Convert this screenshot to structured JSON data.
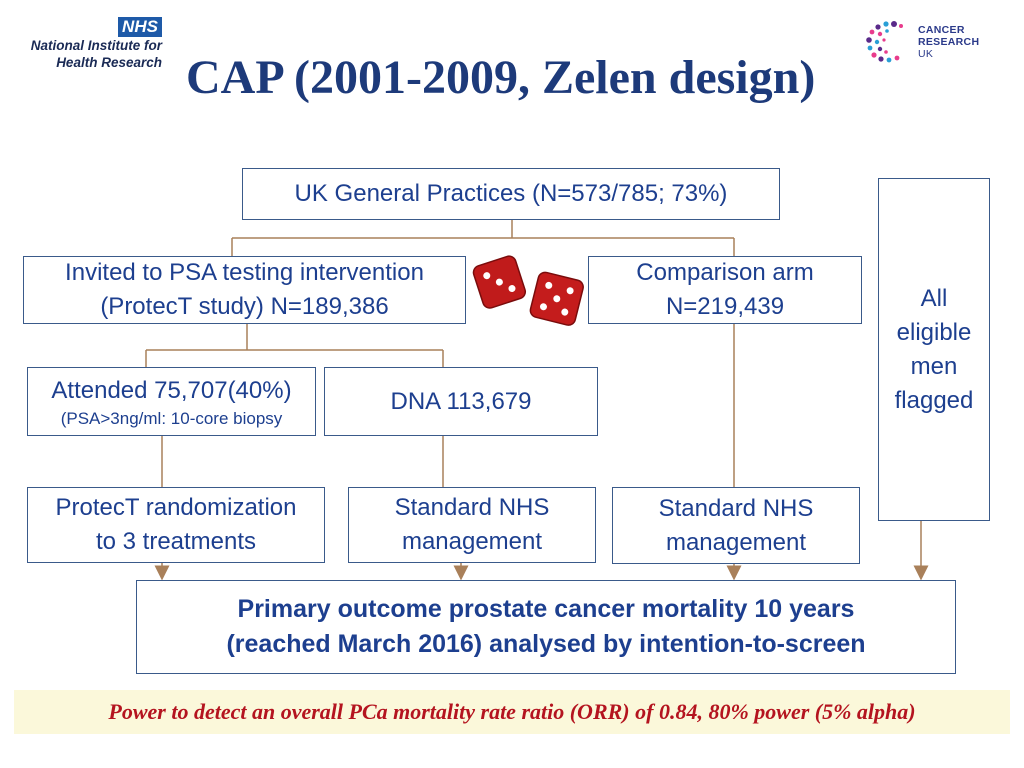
{
  "header": {
    "title": "CAP (2001-2009, Zelen design)",
    "nihr": {
      "badge": "NHS",
      "line1": "National Institute for",
      "line2": "Health Research"
    },
    "cruk": {
      "line1": "CANCER",
      "line2": "RESEARCH",
      "line3": "UK"
    }
  },
  "flow": {
    "practices": "UK General Practices (N=573/785; 73%)",
    "invited": {
      "line1": "Invited to PSA testing intervention",
      "line2": "(ProtecT study) N=189,386"
    },
    "comparison": {
      "line1": "Comparison arm",
      "line2": "N=219,439"
    },
    "flagged": {
      "line1": "All",
      "line2": "eligible",
      "line3": "men",
      "line4": "flagged"
    },
    "attended": {
      "line1": "Attended 75,707(40%)",
      "line2": "(PSA>3ng/ml: 10-core biopsy"
    },
    "dna": "DNA 113,679",
    "protect": {
      "line1": "ProtecT randomization",
      "line2": "to 3 treatments"
    },
    "standard_mid": {
      "line1": "Standard NHS",
      "line2": "management"
    },
    "standard_right": {
      "line1": "Standard NHS",
      "line2": "management"
    },
    "outcome": {
      "line1": "Primary outcome prostate cancer mortality 10 years",
      "line2": "(reached March 2016) analysed by intention-to-screen"
    }
  },
  "footer": {
    "power": "Power to detect an overall PCa mortality rate ratio (ORR) of 0.84, 80% power (5% alpha)"
  },
  "colors": {
    "title": "#1d3a7a",
    "box_text": "#1d3f8f",
    "connector": "#a9805a",
    "footer_text": "#b4141f",
    "footer_bg": "#fbf8da"
  }
}
